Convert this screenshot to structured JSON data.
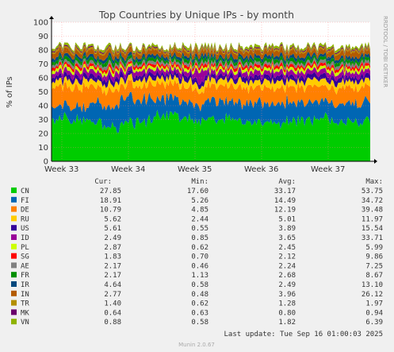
{
  "chart_data": {
    "type": "area",
    "title": "Top Countries by Unique IPs - by month",
    "ylabel": "% of IPs",
    "side_text": "RRDTOOL / TOBI OETIKER",
    "ylim": [
      0,
      100
    ],
    "y_ticks": [
      "0",
      "10",
      "20",
      "30",
      "40",
      "50",
      "60",
      "70",
      "80",
      "90",
      "100"
    ],
    "x_ticks": [
      "Week 33",
      "Week 34",
      "Week 35",
      "Week 36",
      "Week 37"
    ],
    "stacked": true,
    "columns": [
      "Cur:",
      "Min:",
      "Avg:",
      "Max:"
    ],
    "series": [
      {
        "name": "CN",
        "color": "#00cc00",
        "cur": "27.85",
        "min": "17.60",
        "avg": "33.17",
        "max": "53.75"
      },
      {
        "name": "FI",
        "color": "#0066b3",
        "cur": "18.91",
        "min": "5.26",
        "avg": "14.49",
        "max": "34.72"
      },
      {
        "name": "DE",
        "color": "#ff8000",
        "cur": "10.79",
        "min": "4.85",
        "avg": "12.19",
        "max": "39.48"
      },
      {
        "name": "RU",
        "color": "#ffcc00",
        "cur": "5.62",
        "min": "2.44",
        "avg": "5.01",
        "max": "11.97"
      },
      {
        "name": "US",
        "color": "#330099",
        "cur": "5.61",
        "min": "0.55",
        "avg": "3.89",
        "max": "15.54"
      },
      {
        "name": "ID",
        "color": "#990099",
        "cur": "2.49",
        "min": "0.85",
        "avg": "3.65",
        "max": "33.71"
      },
      {
        "name": "PL",
        "color": "#ccff00",
        "cur": "2.87",
        "min": "0.62",
        "avg": "2.45",
        "max": "5.99"
      },
      {
        "name": "SG",
        "color": "#ff0000",
        "cur": "1.83",
        "min": "0.70",
        "avg": "2.12",
        "max": "9.86"
      },
      {
        "name": "AE",
        "color": "#808080",
        "cur": "2.17",
        "min": "0.46",
        "avg": "2.24",
        "max": "7.25"
      },
      {
        "name": "FR",
        "color": "#008f00",
        "cur": "2.17",
        "min": "1.13",
        "avg": "2.68",
        "max": "8.67"
      },
      {
        "name": "IR",
        "color": "#00487d",
        "cur": "4.64",
        "min": "0.58",
        "avg": "2.49",
        "max": "13.10"
      },
      {
        "name": "IN",
        "color": "#b35a00",
        "cur": "2.77",
        "min": "0.48",
        "avg": "3.96",
        "max": "26.12"
      },
      {
        "name": "TR",
        "color": "#b38f00",
        "cur": "1.40",
        "min": "0.62",
        "avg": "1.28",
        "max": "1.97"
      },
      {
        "name": "MK",
        "color": "#6b006b",
        "cur": "0.64",
        "min": "0.63",
        "avg": "0.80",
        "max": "0.94"
      },
      {
        "name": "VN",
        "color": "#8fb300",
        "cur": "0.88",
        "min": "0.58",
        "avg": "1.82",
        "max": "6.39"
      }
    ]
  },
  "footer": {
    "last_update": "Last update: Tue Sep 16 01:00:03 2025",
    "munin": "Munin 2.0.67"
  }
}
